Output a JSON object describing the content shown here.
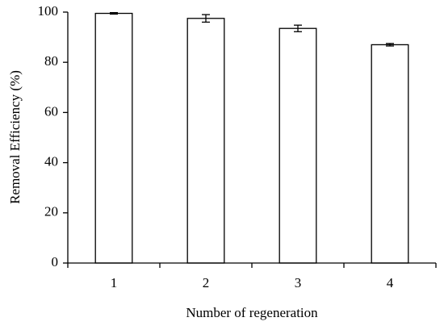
{
  "chart_data": {
    "type": "bar",
    "x_label": "Number of regeneration",
    "y_label": "Removal Efficiency (%)",
    "categories": [
      "1",
      "2",
      "3",
      "4"
    ],
    "values": [
      99.5,
      97.5,
      93.5,
      87
    ],
    "errors": [
      0.3,
      1.5,
      1.3,
      0.5
    ],
    "color": "#ffffff",
    "edge_color": "#000000",
    "ylim": [
      0,
      100
    ],
    "yticks": [
      0,
      20,
      40,
      60,
      80,
      100
    ],
    "grid": false
  }
}
